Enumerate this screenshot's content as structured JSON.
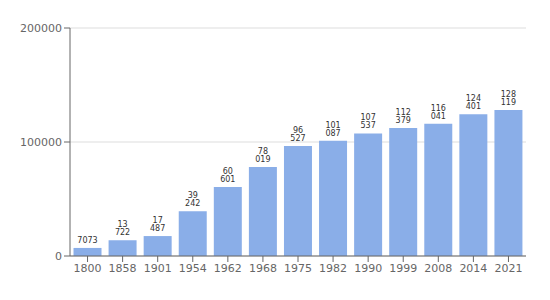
{
  "chart_data": {
    "type": "bar",
    "categories": [
      "1800",
      "1858",
      "1901",
      "1954",
      "1962",
      "1968",
      "1975",
      "1982",
      "1990",
      "1999",
      "2008",
      "2014",
      "2021"
    ],
    "values": [
      7073,
      13722,
      17487,
      39242,
      60601,
      78019,
      96527,
      101087,
      107537,
      112379,
      116041,
      124401,
      128119
    ],
    "value_labels": [
      "7073",
      "13 722",
      "17 487",
      "39 242",
      "60 601",
      "78 019",
      "96 527",
      "101 087",
      "107 537",
      "112 379",
      "116 041",
      "124 401",
      "128 119"
    ],
    "data_labels": true,
    "color": "#8aaee8",
    "ylim": [
      0,
      200000
    ],
    "yticks": [
      0,
      100000,
      200000
    ],
    "grid": true
  }
}
